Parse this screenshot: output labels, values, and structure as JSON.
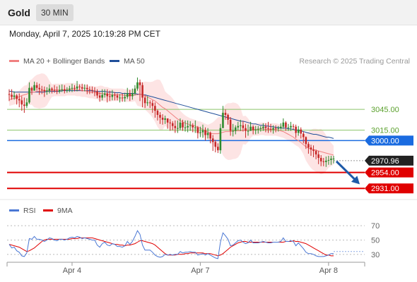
{
  "header": {
    "asset": "Gold",
    "timeframe": "30 MIN",
    "datetime": "Monday, April 7, 2025 10:19:28 PM CET"
  },
  "legend": {
    "ma20": {
      "label": "MA 20 + Bollinger Bands",
      "color": "#f08080"
    },
    "ma50": {
      "label": "MA 50",
      "color": "#1f4e99"
    },
    "credit": "Research © 2025 Trading Central",
    "rsi": {
      "label": "RSI",
      "color": "#4a77d4"
    },
    "rsi_ma": {
      "label": "9MA",
      "color": "#e00000"
    }
  },
  "colors": {
    "up": "#2e8b2e",
    "down": "#c62828",
    "blue_level": "#1a6be0",
    "support": "#e00000",
    "resistance": "#8cc46a",
    "bands": "#fde4e4",
    "arrow": "#1e5aa8"
  },
  "chart_data": [
    {
      "type": "candlestick",
      "instrument": "Gold",
      "ylim": [
        2918,
        3096
      ],
      "x_ticks": [
        {
          "label": "Apr 4",
          "index": 25
        },
        {
          "label": "Apr 7",
          "index": 76
        },
        {
          "label": "Apr 8",
          "index": 127
        }
      ],
      "levels": [
        {
          "label": "3045.00",
          "value": 3045,
          "kind": "resistance"
        },
        {
          "label": "3015.00",
          "value": 3015,
          "kind": "resistance"
        },
        {
          "label": "3000.00",
          "value": 3000,
          "kind": "pivot"
        },
        {
          "label": "2954.00",
          "value": 2954,
          "kind": "support"
        },
        {
          "label": "2931.00",
          "value": 2931,
          "kind": "support"
        }
      ],
      "last_price": {
        "label": "2970.96",
        "value": 2970.96
      },
      "forecast_arrow": {
        "from": 2970,
        "to": 2937
      },
      "close": [
        3066,
        3063,
        3065,
        3060,
        3058,
        3052,
        3050,
        3055,
        3076,
        3072,
        3080,
        3076,
        3074,
        3073,
        3071,
        3072,
        3075,
        3073,
        3072,
        3071,
        3073,
        3074,
        3072,
        3073,
        3075,
        3076,
        3075,
        3078,
        3077,
        3075,
        3076,
        3074,
        3073,
        3072,
        3071,
        3065,
        3062,
        3066,
        3068,
        3064,
        3063,
        3066,
        3065,
        3062,
        3062,
        3061,
        3063,
        3068,
        3064,
        3068,
        3075,
        3084,
        3080,
        3062,
        3054,
        3055,
        3054,
        3050,
        3043,
        3037,
        3033,
        3030,
        3032,
        3026,
        3025,
        3021,
        3018,
        3018,
        3026,
        3019,
        3019,
        3021,
        3022,
        3019,
        3019,
        3011,
        3012,
        3015,
        3008,
        3011,
        3003,
        2998,
        2991,
        2986,
        3018,
        3040,
        3037,
        3030,
        3014,
        3014,
        3019,
        3021,
        3022,
        3018,
        3014,
        3014,
        3020,
        3015,
        3016,
        3017,
        3018,
        3020,
        3018,
        3017,
        3016,
        3018,
        3017,
        3018,
        3020,
        3026,
        3019,
        3019,
        3021,
        3020,
        3011,
        3016,
        3010,
        3005,
        2995,
        2990,
        2987,
        2985,
        2980,
        2975,
        2970,
        2969,
        2971,
        2972,
        2974,
        2974
      ],
      "high": [
        3074,
        3074,
        3071,
        3067,
        3068,
        3064,
        3062,
        3061,
        3084,
        3078,
        3085,
        3084,
        3082,
        3079,
        3078,
        3077,
        3081,
        3077,
        3080,
        3078,
        3080,
        3081,
        3080,
        3077,
        3079,
        3082,
        3080,
        3086,
        3081,
        3082,
        3081,
        3081,
        3078,
        3078,
        3077,
        3074,
        3070,
        3074,
        3074,
        3074,
        3072,
        3073,
        3070,
        3068,
        3067,
        3068,
        3069,
        3076,
        3073,
        3075,
        3080,
        3091,
        3088,
        3084,
        3065,
        3064,
        3058,
        3058,
        3055,
        3045,
        3041,
        3038,
        3036,
        3031,
        3031,
        3028,
        3029,
        3029,
        3032,
        3030,
        3029,
        3029,
        3028,
        3025,
        3029,
        3021,
        3020,
        3023,
        3019,
        3018,
        3013,
        3008,
        3001,
        2996,
        3024,
        3050,
        3045,
        3039,
        3034,
        3024,
        3022,
        3027,
        3030,
        3028,
        3024,
        3023,
        3027,
        3022,
        3021,
        3021,
        3021,
        3025,
        3025,
        3027,
        3024,
        3022,
        3022,
        3021,
        3025,
        3032,
        3028,
        3024,
        3027,
        3024,
        3023,
        3021,
        3019,
        3013,
        3006,
        2998,
        2994,
        2993,
        2987,
        2985,
        2979,
        2975,
        2977,
        2978,
        2978,
        2978
      ],
      "low": [
        3057,
        3059,
        3059,
        3052,
        3048,
        3043,
        3040,
        3047,
        3053,
        3066,
        3072,
        3072,
        3066,
        3067,
        3063,
        3066,
        3068,
        3068,
        3069,
        3067,
        3068,
        3070,
        3068,
        3069,
        3070,
        3070,
        3071,
        3071,
        3073,
        3071,
        3071,
        3067,
        3067,
        3068,
        3064,
        3061,
        3056,
        3058,
        3062,
        3055,
        3057,
        3058,
        3058,
        3058,
        3055,
        3056,
        3056,
        3060,
        3057,
        3059,
        3065,
        3072,
        3057,
        3048,
        3047,
        3050,
        3047,
        3040,
        3033,
        3029,
        3024,
        3023,
        3024,
        3017,
        3014,
        3015,
        3011,
        3011,
        3015,
        3014,
        3013,
        3012,
        3014,
        3012,
        3011,
        3003,
        3005,
        3004,
        3000,
        3003,
        2996,
        2985,
        2983,
        2982,
        2981,
        3018,
        3030,
        3023,
        3007,
        3006,
        3009,
        3015,
        3014,
        3013,
        3004,
        3007,
        3014,
        3009,
        3009,
        3010,
        3013,
        3014,
        3012,
        3011,
        3012,
        3010,
        3012,
        3013,
        3016,
        3017,
        3014,
        3014,
        3014,
        3016,
        3004,
        3007,
        3003,
        2996,
        2988,
        2981,
        2978,
        2976,
        2973,
        2966,
        2963,
        2963,
        2962,
        2965,
        2965,
        2967
      ],
      "ma20": [
        3059,
        3060,
        3061,
        3062,
        3063,
        3065,
        3066,
        3067,
        3069,
        3070,
        3070,
        3071,
        3071,
        3072,
        3072,
        3072,
        3072,
        3072,
        3073,
        3073,
        3073,
        3073,
        3073,
        3074,
        3074,
        3074,
        3074,
        3073,
        3073,
        3072,
        3072,
        3071,
        3070,
        3070,
        3069,
        3069,
        3068,
        3068,
        3067,
        3067,
        3066,
        3066,
        3066,
        3066,
        3066,
        3066,
        3065,
        3065,
        3065,
        3065,
        3066,
        3066,
        3067,
        3066,
        3065,
        3063,
        3061,
        3059,
        3057,
        3054,
        3051,
        3048,
        3046,
        3043,
        3040,
        3037,
        3034,
        3031,
        3029,
        3027,
        3025,
        3024,
        3023,
        3022,
        3021,
        3019,
        3018,
        3016,
        3014,
        3012,
        3011,
        3010,
        3010,
        3010,
        3011,
        3012,
        3013,
        3013,
        3013,
        3014,
        3014,
        3014,
        3014,
        3015,
        3015,
        3015,
        3015,
        3016,
        3016,
        3016,
        3017,
        3017,
        3016,
        3016,
        3016,
        3016,
        3016,
        3015,
        3014,
        3013,
        3011,
        3009,
        3007,
        3005,
        3002,
        3000,
        2997,
        2994,
        2991,
        2989,
        2988,
        2987,
        2986,
        2985,
        2984,
        2983,
        2982,
        2981,
        2980,
        2979
      ],
      "ma50": [
        3071,
        3071,
        3070,
        3070,
        3070,
        3070,
        3070,
        3070,
        3070,
        3070,
        3070,
        3070,
        3070,
        3070,
        3070,
        3071,
        3071,
        3071,
        3071,
        3071,
        3071,
        3072,
        3072,
        3072,
        3072,
        3072,
        3072,
        3072,
        3072,
        3072,
        3072,
        3072,
        3072,
        3072,
        3071,
        3071,
        3071,
        3071,
        3071,
        3070,
        3070,
        3070,
        3069,
        3069,
        3069,
        3068,
        3068,
        3068,
        3068,
        3068,
        3068,
        3067,
        3067,
        3066,
        3066,
        3065,
        3064,
        3063,
        3062,
        3061,
        3060,
        3059,
        3058,
        3057,
        3056,
        3055,
        3054,
        3053,
        3052,
        3051,
        3050,
        3049,
        3048,
        3047,
        3046,
        3045,
        3044,
        3043,
        3042,
        3041,
        3040,
        3039,
        3038,
        3037,
        3036,
        3035,
        3034,
        3033,
        3032,
        3031,
        3030,
        3029,
        3028,
        3028,
        3027,
        3026,
        3025,
        3024,
        3024,
        3023,
        3022,
        3022,
        3021,
        3021,
        3020,
        3020,
        3019,
        3019,
        3018,
        3018,
        3018,
        3017,
        3017,
        3016,
        3015,
        3015,
        3014,
        3013,
        3012,
        3011,
        3010,
        3009,
        3009,
        3008,
        3007,
        3006,
        3005,
        3005,
        3004,
        3003
      ]
    },
    {
      "type": "line",
      "name": "RSI",
      "ylim": [
        20,
        76
      ],
      "y_ticks": [
        70,
        50,
        30
      ],
      "rsi": [
        44,
        39,
        40,
        35,
        33,
        28,
        27,
        32,
        52,
        51,
        55,
        51,
        51,
        50,
        48,
        50,
        53,
        52,
        50,
        49,
        51,
        51,
        50,
        51,
        53,
        54,
        53,
        55,
        54,
        52,
        53,
        52,
        51,
        50,
        50,
        43,
        40,
        45,
        47,
        43,
        42,
        45,
        44,
        41,
        41,
        40,
        42,
        48,
        44,
        48,
        55,
        63,
        58,
        43,
        36,
        36,
        36,
        33,
        29,
        27,
        26,
        27,
        30,
        29,
        30,
        29,
        30,
        30,
        34,
        32,
        33,
        33,
        34,
        33,
        33,
        29,
        30,
        31,
        29,
        31,
        29,
        27,
        25,
        24,
        47,
        60,
        56,
        51,
        42,
        43,
        46,
        49,
        50,
        47,
        45,
        46,
        50,
        46,
        46,
        46,
        47,
        48,
        47,
        46,
        46,
        47,
        47,
        47,
        48,
        53,
        48,
        48,
        49,
        48,
        42,
        46,
        42,
        38,
        33,
        31,
        31,
        30,
        28,
        27,
        27,
        27,
        28,
        29,
        31,
        31
      ],
      "ma9": [
        44,
        43,
        42,
        41,
        40,
        38,
        36,
        34,
        35,
        37,
        39,
        42,
        45,
        48,
        50,
        51,
        51,
        51,
        51,
        51,
        51,
        51,
        51,
        51,
        51,
        52,
        52,
        52,
        53,
        53,
        53,
        53,
        53,
        53,
        52,
        51,
        50,
        49,
        48,
        47,
        46,
        45,
        44,
        44,
        43,
        43,
        42,
        43,
        43,
        44,
        45,
        47,
        49,
        49,
        48,
        47,
        46,
        45,
        43,
        40,
        37,
        34,
        31,
        29,
        29,
        29,
        29,
        30,
        30,
        30,
        31,
        31,
        32,
        32,
        32,
        32,
        32,
        32,
        31,
        31,
        31,
        30,
        29,
        28,
        29,
        31,
        34,
        37,
        40,
        42,
        44,
        46,
        47,
        48,
        48,
        47,
        47,
        47,
        47,
        47,
        47,
        47,
        47,
        47,
        47,
        47,
        47,
        47,
        47,
        47,
        48,
        48,
        48,
        49,
        48,
        48,
        47,
        46,
        45,
        43,
        41,
        39,
        37,
        35,
        33,
        31,
        29,
        29,
        28,
        28
      ],
      "rsi_forecast": 34
    }
  ]
}
